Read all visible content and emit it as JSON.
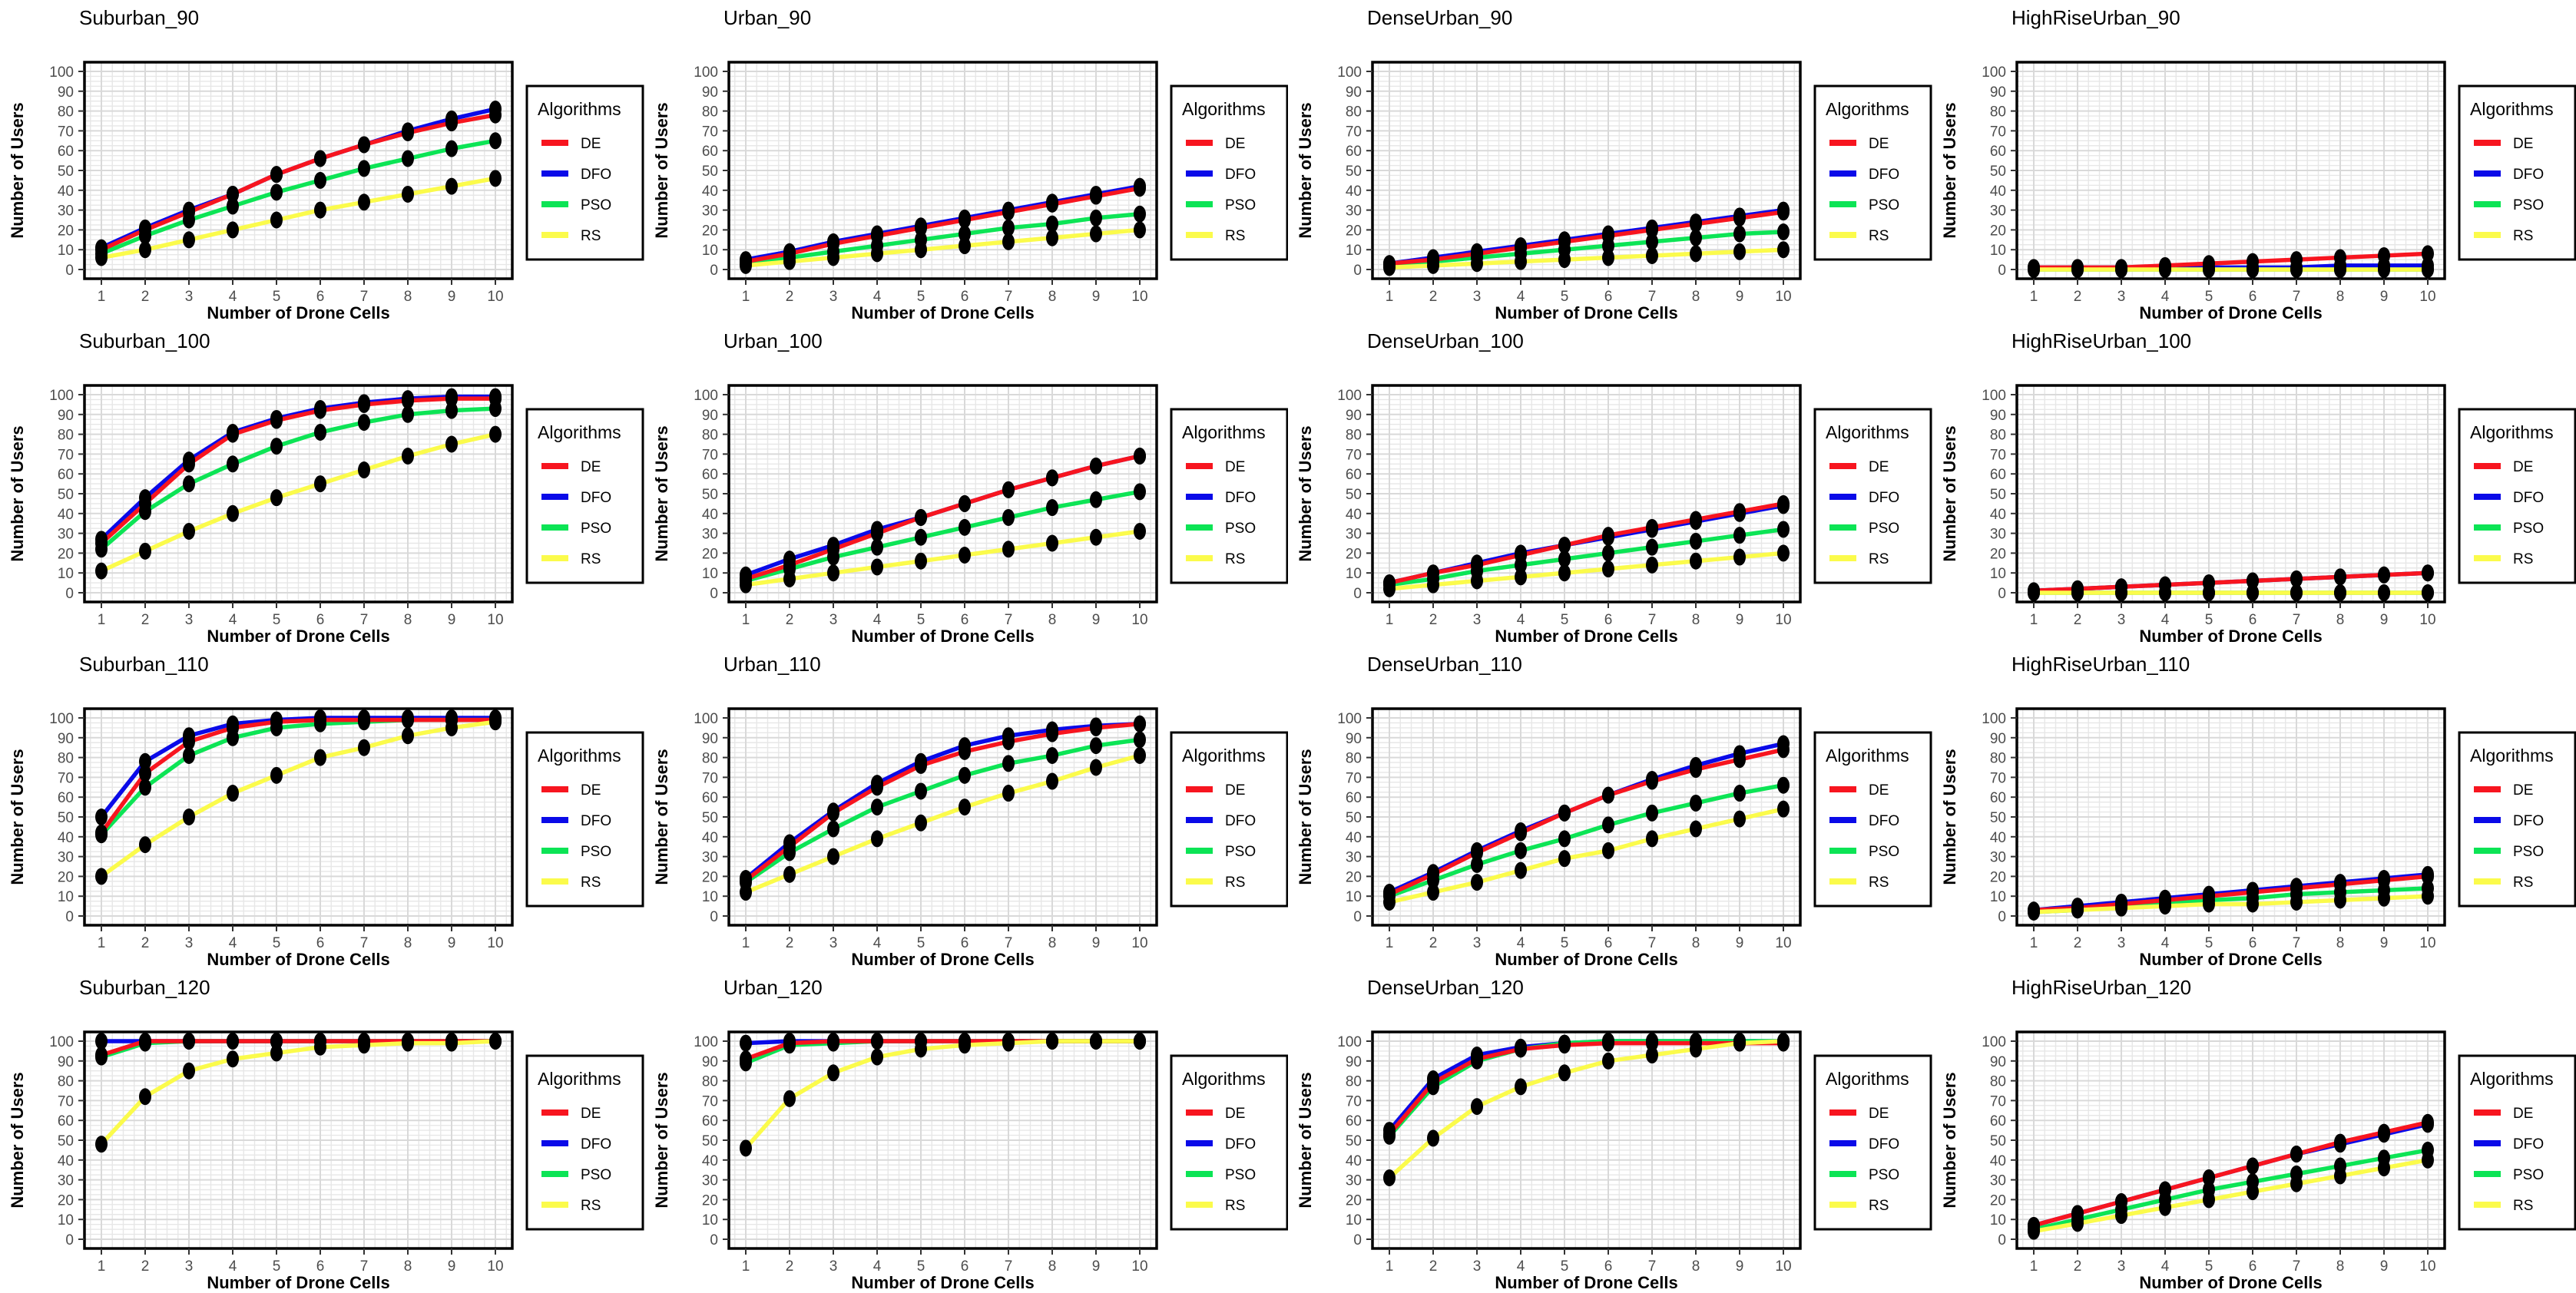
{
  "chart_meta": {
    "type": "line",
    "xlabel": "Number of Drone Cells",
    "ylabel": "Number of Users",
    "legend_title": "Algorithms",
    "legend_position": "right",
    "grid": true,
    "x": [
      1,
      2,
      3,
      4,
      5,
      6,
      7,
      8,
      9,
      10
    ],
    "yticks": [
      0,
      10,
      20,
      30,
      40,
      50,
      60,
      70,
      80,
      90,
      100
    ],
    "ylim": [
      0,
      100
    ],
    "marker_color": "#000000",
    "algorithms": [
      {
        "name": "DE",
        "color": "#F7151F"
      },
      {
        "name": "DFO",
        "color": "#0A0AE8"
      },
      {
        "name": "PSO",
        "color": "#0CE455"
      },
      {
        "name": "RS",
        "color": "#FBFB4B"
      }
    ]
  },
  "chart_data": [
    {
      "type": "line",
      "title": "Suburban_90",
      "series": [
        {
          "name": "DE",
          "values": [
            10,
            20,
            29,
            38,
            48,
            56,
            63,
            69,
            74,
            78
          ]
        },
        {
          "name": "DFO",
          "values": [
            11,
            21,
            30,
            38,
            48,
            56,
            63,
            70,
            76,
            81
          ]
        },
        {
          "name": "PSO",
          "values": [
            8,
            17,
            25,
            32,
            39,
            45,
            51,
            56,
            61,
            65
          ]
        },
        {
          "name": "RS",
          "values": [
            6,
            10,
            15,
            20,
            25,
            30,
            34,
            38,
            42,
            46
          ]
        }
      ]
    },
    {
      "type": "line",
      "title": "Urban_90",
      "series": [
        {
          "name": "DE",
          "values": [
            4,
            8,
            13,
            17,
            21,
            25,
            29,
            33,
            37,
            41
          ]
        },
        {
          "name": "DFO",
          "values": [
            5,
            9,
            14,
            18,
            22,
            26,
            30,
            34,
            38,
            42
          ]
        },
        {
          "name": "PSO",
          "values": [
            3,
            6,
            9,
            12,
            15,
            18,
            21,
            23,
            26,
            28
          ]
        },
        {
          "name": "RS",
          "values": [
            2,
            4,
            6,
            8,
            10,
            12,
            14,
            16,
            18,
            20
          ]
        }
      ]
    },
    {
      "type": "line",
      "title": "DenseUrban_90",
      "series": [
        {
          "name": "DE",
          "values": [
            3,
            5,
            8,
            11,
            14,
            17,
            20,
            23,
            26,
            29
          ]
        },
        {
          "name": "DFO",
          "values": [
            3,
            6,
            9,
            12,
            15,
            18,
            21,
            24,
            27,
            30
          ]
        },
        {
          "name": "PSO",
          "values": [
            2,
            4,
            6,
            8,
            10,
            12,
            14,
            16,
            18,
            19
          ]
        },
        {
          "name": "RS",
          "values": [
            1,
            2,
            3,
            4,
            5,
            6,
            7,
            8,
            9,
            10
          ]
        }
      ]
    },
    {
      "type": "line",
      "title": "HighRiseUrban_90",
      "series": [
        {
          "name": "DE",
          "values": [
            1,
            1,
            1,
            2,
            3,
            4,
            5,
            6,
            7,
            8
          ]
        },
        {
          "name": "DFO",
          "values": [
            1,
            1,
            1,
            1,
            1,
            1,
            1,
            2,
            2,
            2
          ]
        },
        {
          "name": "PSO",
          "values": [
            0,
            0,
            0,
            0,
            0,
            0,
            0,
            0,
            0,
            0
          ]
        },
        {
          "name": "RS",
          "values": [
            0,
            0,
            0,
            0,
            0,
            0,
            0,
            0,
            0,
            0
          ]
        }
      ]
    },
    {
      "type": "line",
      "title": "Suburban_100",
      "series": [
        {
          "name": "DE",
          "values": [
            25,
            45,
            65,
            80,
            87,
            92,
            95,
            97,
            98,
            98
          ]
        },
        {
          "name": "DFO",
          "values": [
            27,
            48,
            67,
            81,
            88,
            93,
            96,
            98,
            99,
            99
          ]
        },
        {
          "name": "PSO",
          "values": [
            22,
            41,
            55,
            65,
            74,
            81,
            86,
            90,
            92,
            93
          ]
        },
        {
          "name": "RS",
          "values": [
            11,
            21,
            31,
            40,
            48,
            55,
            62,
            69,
            75,
            80
          ]
        }
      ]
    },
    {
      "type": "line",
      "title": "Urban_100",
      "series": [
        {
          "name": "DE",
          "values": [
            7,
            14,
            22,
            30,
            38,
            45,
            52,
            58,
            64,
            69
          ]
        },
        {
          "name": "DFO",
          "values": [
            9,
            17,
            24,
            32,
            38,
            45,
            52,
            58,
            64,
            69
          ]
        },
        {
          "name": "PSO",
          "values": [
            6,
            12,
            18,
            23,
            28,
            33,
            38,
            43,
            47,
            51
          ]
        },
        {
          "name": "RS",
          "values": [
            4,
            7,
            10,
            13,
            16,
            19,
            22,
            25,
            28,
            31
          ]
        }
      ]
    },
    {
      "type": "line",
      "title": "DenseUrban_100",
      "series": [
        {
          "name": "DE",
          "values": [
            5,
            10,
            14,
            19,
            24,
            29,
            33,
            37,
            41,
            45
          ]
        },
        {
          "name": "DFO",
          "values": [
            5,
            10,
            15,
            20,
            24,
            28,
            32,
            36,
            40,
            44
          ]
        },
        {
          "name": "PSO",
          "values": [
            4,
            7,
            11,
            14,
            17,
            20,
            23,
            26,
            29,
            32
          ]
        },
        {
          "name": "RS",
          "values": [
            2,
            4,
            6,
            8,
            10,
            12,
            14,
            16,
            18,
            20
          ]
        }
      ]
    },
    {
      "type": "line",
      "title": "HighRiseUrban_100",
      "series": [
        {
          "name": "DE",
          "values": [
            1,
            2,
            3,
            4,
            5,
            6,
            7,
            8,
            9,
            10
          ]
        },
        {
          "name": "DFO",
          "values": [
            1,
            2,
            3,
            4,
            5,
            6,
            7,
            8,
            9,
            10
          ]
        },
        {
          "name": "PSO",
          "values": [
            0,
            0,
            0,
            0,
            0,
            0,
            0,
            0,
            0,
            0
          ]
        },
        {
          "name": "RS",
          "values": [
            0,
            0,
            0,
            0,
            0,
            0,
            0,
            0,
            0,
            0
          ]
        }
      ]
    },
    {
      "type": "line",
      "title": "Suburban_110",
      "series": [
        {
          "name": "DE",
          "values": [
            42,
            72,
            88,
            95,
            98,
            99,
            99,
            99,
            99,
            99
          ]
        },
        {
          "name": "DFO",
          "values": [
            50,
            78,
            91,
            97,
            99,
            100,
            100,
            100,
            100,
            100
          ]
        },
        {
          "name": "PSO",
          "values": [
            41,
            65,
            81,
            90,
            95,
            97,
            98,
            99,
            99,
            99
          ]
        },
        {
          "name": "RS",
          "values": [
            20,
            36,
            50,
            62,
            71,
            80,
            85,
            91,
            95,
            98
          ]
        }
      ]
    },
    {
      "type": "line",
      "title": "Urban_110",
      "series": [
        {
          "name": "DE",
          "values": [
            18,
            35,
            52,
            65,
            76,
            83,
            88,
            92,
            95,
            97
          ]
        },
        {
          "name": "DFO",
          "values": [
            19,
            37,
            53,
            67,
            78,
            86,
            91,
            94,
            96,
            97
          ]
        },
        {
          "name": "PSO",
          "values": [
            17,
            32,
            44,
            55,
            63,
            71,
            77,
            81,
            86,
            89
          ]
        },
        {
          "name": "RS",
          "values": [
            12,
            21,
            30,
            39,
            47,
            55,
            62,
            68,
            75,
            81
          ]
        }
      ]
    },
    {
      "type": "line",
      "title": "DenseUrban_110",
      "series": [
        {
          "name": "DE",
          "values": [
            11,
            21,
            32,
            42,
            52,
            61,
            68,
            74,
            79,
            84
          ]
        },
        {
          "name": "DFO",
          "values": [
            12,
            22,
            33,
            43,
            52,
            61,
            69,
            76,
            82,
            87
          ]
        },
        {
          "name": "PSO",
          "values": [
            10,
            18,
            26,
            33,
            39,
            46,
            52,
            57,
            62,
            66
          ]
        },
        {
          "name": "RS",
          "values": [
            7,
            12,
            17,
            23,
            29,
            33,
            39,
            44,
            49,
            54
          ]
        }
      ]
    },
    {
      "type": "line",
      "title": "HighRiseUrban_110",
      "series": [
        {
          "name": "DE",
          "values": [
            3,
            4,
            6,
            8,
            10,
            12,
            14,
            16,
            18,
            20
          ]
        },
        {
          "name": "DFO",
          "values": [
            3,
            5,
            7,
            9,
            11,
            13,
            15,
            17,
            19,
            21
          ]
        },
        {
          "name": "PSO",
          "values": [
            2,
            3,
            5,
            6,
            8,
            9,
            11,
            12,
            13,
            14
          ]
        },
        {
          "name": "RS",
          "values": [
            2,
            3,
            4,
            5,
            6,
            6,
            7,
            8,
            9,
            10
          ]
        }
      ]
    },
    {
      "type": "line",
      "title": "Suburban_120",
      "series": [
        {
          "name": "DE",
          "values": [
            93,
            100,
            100,
            100,
            100,
            100,
            100,
            100,
            100,
            100
          ]
        },
        {
          "name": "DFO",
          "values": [
            100,
            100,
            100,
            100,
            100,
            100,
            100,
            100,
            100,
            100
          ]
        },
        {
          "name": "PSO",
          "values": [
            92,
            99,
            100,
            100,
            100,
            100,
            100,
            100,
            100,
            100
          ]
        },
        {
          "name": "RS",
          "values": [
            48,
            72,
            85,
            91,
            94,
            97,
            98,
            99,
            99,
            100
          ]
        }
      ]
    },
    {
      "type": "line",
      "title": "Urban_120",
      "series": [
        {
          "name": "DE",
          "values": [
            91,
            99,
            100,
            100,
            100,
            100,
            100,
            100,
            100,
            100
          ]
        },
        {
          "name": "DFO",
          "values": [
            99,
            100,
            100,
            100,
            100,
            100,
            100,
            100,
            100,
            100
          ]
        },
        {
          "name": "PSO",
          "values": [
            89,
            98,
            99,
            100,
            100,
            100,
            100,
            100,
            100,
            100
          ]
        },
        {
          "name": "RS",
          "values": [
            46,
            71,
            84,
            92,
            96,
            98,
            99,
            100,
            100,
            100
          ]
        }
      ]
    },
    {
      "type": "line",
      "title": "DenseUrban_120",
      "series": [
        {
          "name": "DE",
          "values": [
            53,
            79,
            91,
            96,
            98,
            99,
            99,
            99,
            99,
            99
          ]
        },
        {
          "name": "DFO",
          "values": [
            55,
            81,
            93,
            97,
            99,
            100,
            100,
            100,
            100,
            100
          ]
        },
        {
          "name": "PSO",
          "values": [
            52,
            77,
            90,
            96,
            99,
            100,
            100,
            100,
            100,
            100
          ]
        },
        {
          "name": "RS",
          "values": [
            31,
            51,
            67,
            77,
            84,
            90,
            93,
            96,
            99,
            100
          ]
        }
      ]
    },
    {
      "type": "line",
      "title": "HighRiseUrban_120",
      "series": [
        {
          "name": "DE",
          "values": [
            7,
            13,
            19,
            25,
            31,
            37,
            43,
            49,
            54,
            59
          ]
        },
        {
          "name": "DFO",
          "values": [
            7,
            13,
            19,
            25,
            31,
            37,
            43,
            48,
            53,
            58
          ]
        },
        {
          "name": "PSO",
          "values": [
            5,
            10,
            15,
            20,
            25,
            29,
            33,
            37,
            41,
            45
          ]
        },
        {
          "name": "RS",
          "values": [
            4,
            8,
            12,
            16,
            20,
            24,
            28,
            32,
            36,
            40
          ]
        }
      ]
    }
  ]
}
